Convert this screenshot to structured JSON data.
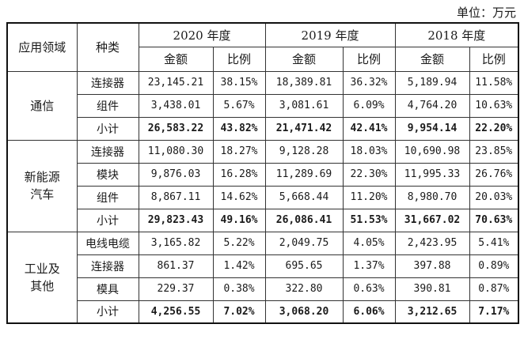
{
  "unit_label": "单位：万元",
  "header": {
    "domain": "应用领域",
    "type": "种类",
    "years": [
      "2020 年度",
      "2019 年度",
      "2018 年度"
    ],
    "amount": "金额",
    "ratio": "比例"
  },
  "groups": [
    {
      "domain_lines": [
        "通信"
      ],
      "rows": [
        {
          "type": "连接器",
          "values": [
            "23,145.21",
            "38.15%",
            "18,389.81",
            "36.32%",
            "5,189.94",
            "11.58%"
          ]
        },
        {
          "type": "组件",
          "values": [
            "3,438.01",
            "5.67%",
            "3,081.61",
            "6.09%",
            "4,764.20",
            "10.63%"
          ]
        },
        {
          "type": "小计",
          "values": [
            "26,583.22",
            "43.82%",
            "21,471.42",
            "42.41%",
            "9,954.14",
            "22.20%"
          ]
        }
      ]
    },
    {
      "domain_lines": [
        "新能源",
        "汽车"
      ],
      "rows": [
        {
          "type": "连接器",
          "values": [
            "11,080.30",
            "18.27%",
            "9,128.28",
            "18.03%",
            "10,690.98",
            "23.85%"
          ]
        },
        {
          "type": "模块",
          "values": [
            "9,876.03",
            "16.28%",
            "11,289.69",
            "22.30%",
            "11,995.33",
            "26.76%"
          ]
        },
        {
          "type": "组件",
          "values": [
            "8,867.11",
            "14.62%",
            "5,668.44",
            "11.20%",
            "8,980.70",
            "20.03%"
          ]
        },
        {
          "type": "小计",
          "values": [
            "29,823.43",
            "49.16%",
            "26,086.41",
            "51.53%",
            "31,667.02",
            "70.63%"
          ]
        }
      ]
    },
    {
      "domain_lines": [
        "工业及",
        "其他"
      ],
      "rows": [
        {
          "type": "电线电缆",
          "values": [
            "3,165.82",
            "5.22%",
            "2,049.75",
            "4.05%",
            "2,423.95",
            "5.41%"
          ]
        },
        {
          "type": "连接器",
          "values": [
            "861.37",
            "1.42%",
            "695.65",
            "1.37%",
            "397.88",
            "0.89%"
          ]
        },
        {
          "type": "模具",
          "values": [
            "229.37",
            "0.38%",
            "322.80",
            "0.63%",
            "390.81",
            "0.87%"
          ]
        },
        {
          "type": "小计",
          "values": [
            "4,256.55",
            "7.02%",
            "3,068.20",
            "6.06%",
            "3,212.65",
            "7.17%"
          ]
        }
      ]
    }
  ]
}
